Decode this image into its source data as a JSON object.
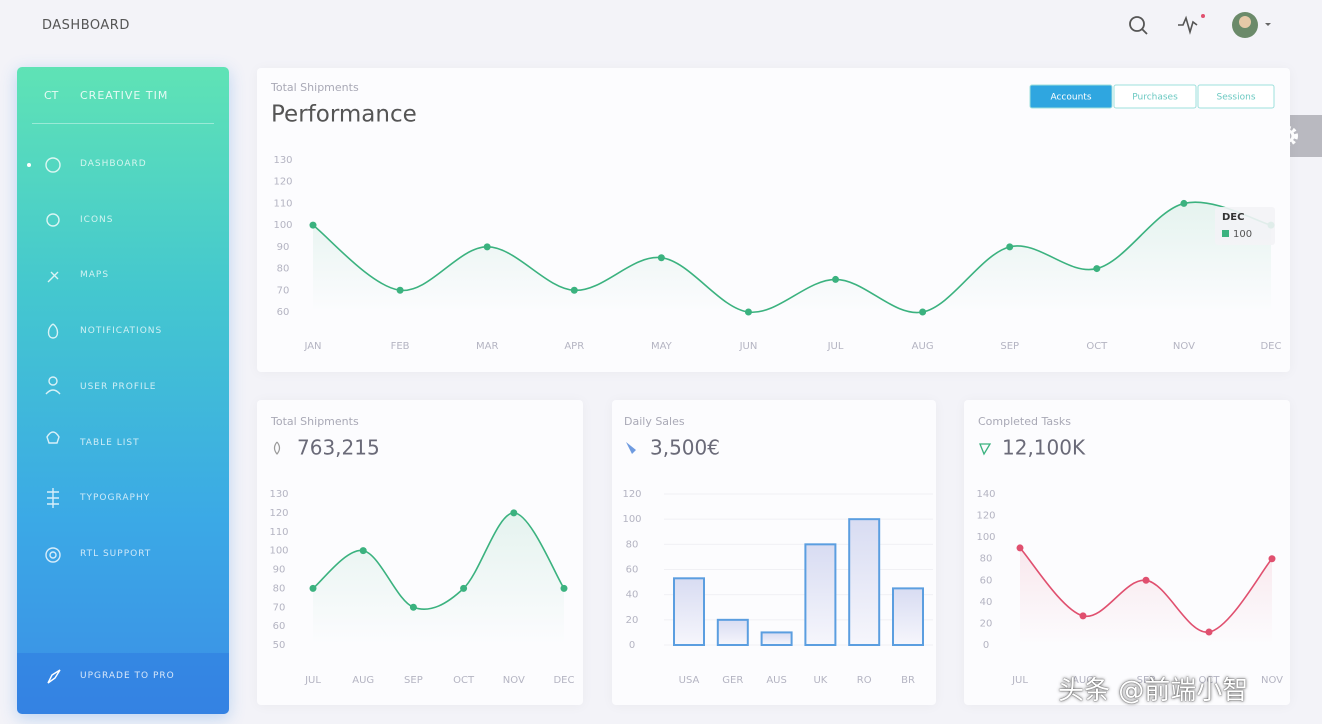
{
  "header": {
    "title": "DASHBOARD"
  },
  "sidebar": {
    "logo_short": "CT",
    "logo": "CREATIVE TIM",
    "items": [
      "DASHBOARD",
      "ICONS",
      "MAPS",
      "NOTIFICATIONS",
      "USER PROFILE",
      "TABLE LIST",
      "TYPOGRAPHY",
      "RTL SUPPORT"
    ],
    "footer": "UPGRADE TO PRO"
  },
  "chart_data": [
    {
      "type": "line",
      "subtitle": "Total Shipments",
      "title": "Performance",
      "buttons": [
        "Accounts",
        "Purchases",
        "Sessions"
      ],
      "categories": [
        "JAN",
        "FEB",
        "MAR",
        "APR",
        "MAY",
        "JUN",
        "JUL",
        "AUG",
        "SEP",
        "OCT",
        "NOV",
        "DEC"
      ],
      "values": [
        100,
        70,
        90,
        70,
        85,
        60,
        75,
        60,
        90,
        80,
        110,
        100
      ],
      "color": "#3bb27f",
      "ylim": [
        60,
        130
      ],
      "yticks": [
        60,
        70,
        80,
        90,
        100,
        110,
        120,
        130
      ],
      "grid": false,
      "tooltip": {
        "label": "DEC"
      }
    },
    {
      "type": "line",
      "subtitle": "Total Shipments",
      "title": "763,215",
      "categories": [
        "JUL",
        "AUG",
        "SEP",
        "OCT",
        "NOV",
        "DEC"
      ],
      "values": [
        80,
        100,
        70,
        80,
        120,
        80
      ],
      "color": "#3bb27f",
      "ylim": [
        50,
        130
      ],
      "yticks": [
        50,
        60,
        70,
        80,
        90,
        100,
        110,
        120,
        130
      ],
      "grid": false
    },
    {
      "type": "bar",
      "subtitle": "Daily Sales",
      "title": "3,500€",
      "categories": [
        "USA",
        "GER",
        "AUS",
        "UK",
        "RO",
        "BR"
      ],
      "values": [
        53,
        20,
        10,
        80,
        100,
        45
      ],
      "color": "#5b9ee0",
      "ylim": [
        0,
        120
      ],
      "yticks": [
        0,
        20,
        40,
        60,
        80,
        100,
        120
      ],
      "grid": true
    },
    {
      "type": "line",
      "subtitle": "Completed Tasks",
      "title": "12,100K",
      "categories": [
        "JUL",
        "AUG",
        "SEP",
        "OCT",
        "NOV"
      ],
      "values": [
        90,
        27,
        60,
        12,
        80
      ],
      "color": "#e0506f",
      "ylim": [
        0,
        140
      ],
      "yticks": [
        0,
        20,
        40,
        60,
        80,
        100,
        120,
        140
      ],
      "grid": false
    }
  ],
  "watermark": "头条 @前端小智"
}
